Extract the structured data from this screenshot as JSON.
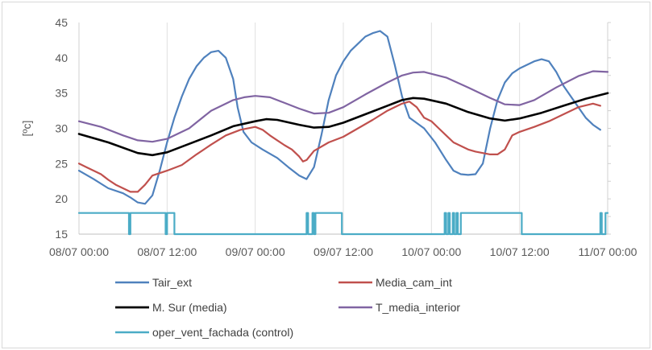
{
  "chart_data": {
    "type": "line",
    "ylabel": "[ºc]",
    "ylim": [
      15,
      45
    ],
    "y_ticks": [
      15,
      20,
      25,
      30,
      35,
      40,
      45
    ],
    "xlim": [
      0,
      72
    ],
    "x_ticks": [
      {
        "x": 0,
        "label": "08/07 00:00"
      },
      {
        "x": 12,
        "label": "08/07 12:00"
      },
      {
        "x": 24,
        "label": "09/07 00:00"
      },
      {
        "x": 36,
        "label": "09/07 12:00"
      },
      {
        "x": 48,
        "label": "10/07 00:00"
      },
      {
        "x": 60,
        "label": "10/07 12:00"
      },
      {
        "x": 72,
        "label": "11/07 00:00"
      }
    ],
    "grid": "vertical",
    "legend_position": "bottom",
    "series": [
      {
        "name": "Tair_ext",
        "color": "#4f81bd",
        "points": [
          [
            0,
            24
          ],
          [
            2,
            22.8
          ],
          [
            4,
            21.5
          ],
          [
            6,
            20.8
          ],
          [
            7,
            20.2
          ],
          [
            8,
            19.5
          ],
          [
            9,
            19.3
          ],
          [
            10,
            20.5
          ],
          [
            11,
            24
          ],
          [
            12,
            28
          ],
          [
            13,
            31.5
          ],
          [
            14,
            34.5
          ],
          [
            15,
            37
          ],
          [
            16,
            38.8
          ],
          [
            17,
            40
          ],
          [
            18,
            40.8
          ],
          [
            19,
            41
          ],
          [
            20,
            40
          ],
          [
            21,
            37
          ],
          [
            21.6,
            33
          ],
          [
            22.4,
            29.5
          ],
          [
            23.5,
            28
          ],
          [
            25,
            27
          ],
          [
            27,
            25.8
          ],
          [
            28.5,
            24.5
          ],
          [
            30,
            23.3
          ],
          [
            31,
            22.8
          ],
          [
            32,
            24.5
          ],
          [
            33,
            29
          ],
          [
            34,
            34
          ],
          [
            35,
            37.5
          ],
          [
            36,
            39.5
          ],
          [
            37,
            41
          ],
          [
            38,
            42
          ],
          [
            39,
            43
          ],
          [
            40,
            43.5
          ],
          [
            41,
            43.8
          ],
          [
            42,
            43
          ],
          [
            43,
            39
          ],
          [
            44,
            34.5
          ],
          [
            45,
            31.5
          ],
          [
            47,
            30
          ],
          [
            48.5,
            28
          ],
          [
            50,
            25.5
          ],
          [
            51,
            24
          ],
          [
            52,
            23.5
          ],
          [
            53,
            23.4
          ],
          [
            54,
            23.5
          ],
          [
            55,
            25
          ],
          [
            56,
            30
          ],
          [
            57,
            34
          ],
          [
            58,
            36.5
          ],
          [
            59,
            37.8
          ],
          [
            60,
            38.5
          ],
          [
            61,
            39
          ],
          [
            62,
            39.5
          ],
          [
            63,
            39.8
          ],
          [
            64,
            39.5
          ],
          [
            65,
            38
          ],
          [
            66,
            36
          ],
          [
            67,
            34.5
          ],
          [
            68,
            33
          ],
          [
            69,
            31.5
          ],
          [
            70,
            30.5
          ],
          [
            71,
            29.8
          ]
        ]
      },
      {
        "name": "Media_cam_int",
        "color": "#c0504d",
        "points": [
          [
            0,
            25
          ],
          [
            1,
            24.5
          ],
          [
            2,
            24
          ],
          [
            3,
            23.5
          ],
          [
            4,
            22.7
          ],
          [
            5,
            22
          ],
          [
            6,
            21.5
          ],
          [
            7,
            21
          ],
          [
            8,
            21
          ],
          [
            9,
            22
          ],
          [
            10,
            23.3
          ],
          [
            12,
            24
          ],
          [
            14,
            24.8
          ],
          [
            16,
            26.3
          ],
          [
            18,
            27.7
          ],
          [
            20,
            29
          ],
          [
            22,
            29.8
          ],
          [
            24,
            30.2
          ],
          [
            25,
            29.8
          ],
          [
            26,
            29
          ],
          [
            27,
            28.3
          ],
          [
            28,
            27.6
          ],
          [
            29,
            27
          ],
          [
            30,
            26
          ],
          [
            30.5,
            25.3
          ],
          [
            31,
            25.5
          ],
          [
            32,
            26.8
          ],
          [
            34,
            28
          ],
          [
            36,
            28.8
          ],
          [
            38,
            30
          ],
          [
            40,
            31.2
          ],
          [
            42,
            32.5
          ],
          [
            44,
            33.5
          ],
          [
            45,
            33.8
          ],
          [
            46,
            33
          ],
          [
            47,
            31.5
          ],
          [
            48,
            31
          ],
          [
            49,
            30
          ],
          [
            50,
            29
          ],
          [
            51,
            28
          ],
          [
            52,
            27.5
          ],
          [
            53,
            27
          ],
          [
            54,
            26.7
          ],
          [
            55,
            26.5
          ],
          [
            56,
            26.3
          ],
          [
            57,
            26.3
          ],
          [
            58,
            27
          ],
          [
            59,
            29
          ],
          [
            60,
            29.5
          ],
          [
            62,
            30.2
          ],
          [
            64,
            31
          ],
          [
            66,
            32
          ],
          [
            68,
            33
          ],
          [
            70,
            33.5
          ],
          [
            71,
            33.2
          ]
        ]
      },
      {
        "name": "M. Sur (media)",
        "color": "#000000",
        "points": [
          [
            0,
            29.2
          ],
          [
            4,
            28
          ],
          [
            8,
            26.5
          ],
          [
            10,
            26.2
          ],
          [
            12,
            26.6
          ],
          [
            15,
            27.8
          ],
          [
            18,
            29
          ],
          [
            21,
            30.3
          ],
          [
            24,
            31
          ],
          [
            25.5,
            31.3
          ],
          [
            27,
            31.2
          ],
          [
            30,
            30.5
          ],
          [
            32,
            30.1
          ],
          [
            34,
            30.2
          ],
          [
            36,
            30.8
          ],
          [
            39,
            32
          ],
          [
            42,
            33.2
          ],
          [
            44,
            34
          ],
          [
            45.5,
            34.3
          ],
          [
            47,
            34.2
          ],
          [
            50,
            33.5
          ],
          [
            53,
            32.3
          ],
          [
            56,
            31.4
          ],
          [
            58,
            31.1
          ],
          [
            60,
            31.4
          ],
          [
            63,
            32.2
          ],
          [
            66,
            33.2
          ],
          [
            69,
            34.2
          ],
          [
            72,
            35
          ]
        ]
      },
      {
        "name": "T_media_interior",
        "color": "#8064a2",
        "points": [
          [
            0,
            31
          ],
          [
            3,
            30.2
          ],
          [
            6,
            29
          ],
          [
            8,
            28.3
          ],
          [
            10,
            28.1
          ],
          [
            12,
            28.5
          ],
          [
            15,
            30
          ],
          [
            18,
            32.5
          ],
          [
            21,
            34
          ],
          [
            22.5,
            34.4
          ],
          [
            24,
            34.6
          ],
          [
            26,
            34.4
          ],
          [
            28,
            33.6
          ],
          [
            30,
            32.8
          ],
          [
            32,
            32.1
          ],
          [
            34,
            32.2
          ],
          [
            36,
            33
          ],
          [
            39,
            34.8
          ],
          [
            42,
            36.5
          ],
          [
            44,
            37.5
          ],
          [
            45.5,
            37.9
          ],
          [
            47,
            38
          ],
          [
            50,
            37.2
          ],
          [
            53,
            35.8
          ],
          [
            56,
            34.3
          ],
          [
            58,
            33.4
          ],
          [
            60,
            33.3
          ],
          [
            62,
            34
          ],
          [
            65,
            35.8
          ],
          [
            68,
            37.4
          ],
          [
            70,
            38.1
          ],
          [
            72,
            38
          ]
        ]
      },
      {
        "name": "oper_vent_fachada (control)",
        "color": "#4bacc6",
        "points": [
          [
            0,
            18
          ],
          [
            6.8,
            18
          ],
          [
            6.8,
            15
          ],
          [
            7,
            15
          ],
          [
            7,
            18
          ],
          [
            11.8,
            18
          ],
          [
            11.8,
            15
          ],
          [
            12,
            15
          ],
          [
            12,
            18
          ],
          [
            13,
            18
          ],
          [
            13,
            15
          ],
          [
            31,
            15
          ],
          [
            31,
            18
          ],
          [
            31.2,
            18
          ],
          [
            31.2,
            15
          ],
          [
            31.8,
            15
          ],
          [
            31.8,
            18
          ],
          [
            32,
            18
          ],
          [
            32,
            15
          ],
          [
            32.2,
            15
          ],
          [
            32.2,
            18
          ],
          [
            35.8,
            18
          ],
          [
            35.8,
            15
          ],
          [
            49.8,
            15
          ],
          [
            49.8,
            18
          ],
          [
            50,
            18
          ],
          [
            50,
            15
          ],
          [
            50.3,
            15
          ],
          [
            50.3,
            18
          ],
          [
            50.5,
            18
          ],
          [
            50.5,
            15
          ],
          [
            50.9,
            15
          ],
          [
            50.9,
            18
          ],
          [
            51.1,
            18
          ],
          [
            51.1,
            15
          ],
          [
            51.4,
            15
          ],
          [
            51.4,
            18
          ],
          [
            51.6,
            18
          ],
          [
            51.6,
            15
          ],
          [
            52,
            15
          ],
          [
            52,
            18
          ],
          [
            60.3,
            18
          ],
          [
            60.3,
            15
          ],
          [
            71,
            15
          ],
          [
            71,
            18
          ],
          [
            71.2,
            18
          ],
          [
            71.2,
            15
          ],
          [
            71.7,
            15
          ],
          [
            71.7,
            18
          ],
          [
            72,
            18
          ]
        ]
      }
    ]
  }
}
